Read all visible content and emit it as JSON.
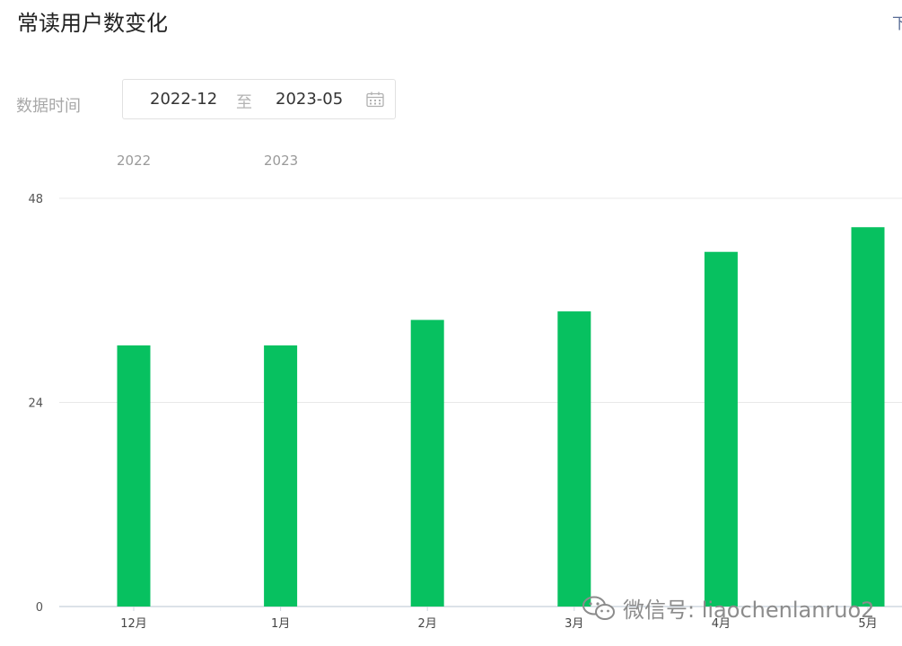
{
  "header": {
    "title": "常读用户数变化",
    "corner_link": "下"
  },
  "filter": {
    "label": "数据时间",
    "start": "2022-12",
    "separator": "至",
    "end": "2023-05"
  },
  "years": [
    "2022",
    "2023"
  ],
  "watermark": {
    "text": "微信号: liaochenlanruo2",
    "icon": "wechat-icon"
  },
  "colors": {
    "bar": "#07c160",
    "grid": "#e8e8e8",
    "axis": "#d0d8e0"
  },
  "chart_data": {
    "type": "bar",
    "categories": [
      "12月",
      "1月",
      "2月",
      "3月",
      "4月",
      "5月"
    ],
    "values": [
      30.7,
      30.7,
      33.7,
      34.7,
      41.7,
      44.6
    ],
    "ylim": [
      0,
      48
    ],
    "yticks": [
      0,
      24,
      48
    ],
    "grid": true
  }
}
